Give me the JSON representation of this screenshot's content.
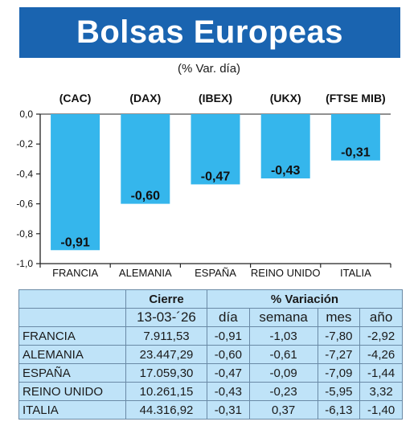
{
  "title": "Bolsas Europeas",
  "subtitle": "(% Var. día)",
  "colors": {
    "title_bar": "#1a64b0",
    "bar": "#35b6ec",
    "table_bg": "#bfe3f8"
  },
  "chart_data": {
    "type": "bar",
    "categories": [
      "FRANCIA",
      "ALEMANIA",
      "ESPAÑA",
      "REINO UNIDO",
      "ITALIA"
    ],
    "index_codes": [
      "(CAC)",
      "(DAX)",
      "(IBEX)",
      "(UKX)",
      "(FTSE MIB)"
    ],
    "values": [
      -0.91,
      -0.6,
      -0.47,
      -0.43,
      -0.31
    ],
    "value_labels": [
      "-0,91",
      "-0,60",
      "-0,47",
      "-0,43",
      "-0,31"
    ],
    "ylim": [
      -1.0,
      0.0
    ],
    "yticks": [
      0.0,
      -0.2,
      -0.4,
      -0.6,
      -0.8,
      -1.0
    ],
    "ytick_labels": [
      "0,0",
      "-0,2",
      "-0,4",
      "-0,6",
      "-0,8",
      "-1,0"
    ],
    "grid": false
  },
  "table": {
    "group_headers": {
      "close": "Cierre",
      "variation": "% Variación"
    },
    "sub_headers": {
      "date": "13-03-´26",
      "day": "día",
      "week": "semana",
      "month": "mes",
      "year": "año"
    },
    "rows": [
      {
        "name": "FRANCIA",
        "close": "7.911,53",
        "day": "-0,91",
        "week": "-1,03",
        "month": "-7,80",
        "year": "-2,92"
      },
      {
        "name": "ALEMANIA",
        "close": "23.447,29",
        "day": "-0,60",
        "week": "-0,61",
        "month": "-7,27",
        "year": "-4,26"
      },
      {
        "name": "ESPAÑA",
        "close": "17.059,30",
        "day": "-0,47",
        "week": "-0,09",
        "month": "-7,09",
        "year": "-1,44"
      },
      {
        "name": "REINO UNIDO",
        "close": "10.261,15",
        "day": "-0,43",
        "week": "-0,23",
        "month": "-5,95",
        "year": "3,32"
      },
      {
        "name": "ITALIA",
        "close": "44.316,92",
        "day": "-0,31",
        "week": "0,37",
        "month": "-6,13",
        "year": "-1,40"
      }
    ]
  }
}
